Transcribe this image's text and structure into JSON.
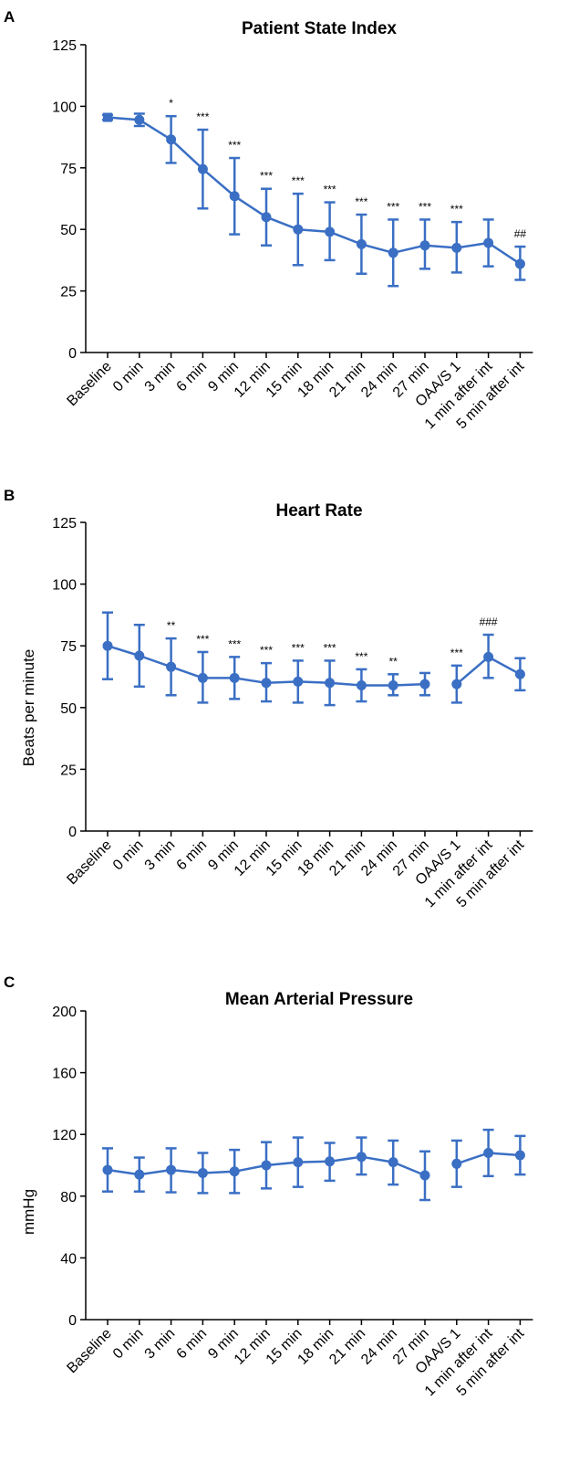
{
  "colors": {
    "series": "#3a6fc4",
    "axis": "#000000"
  },
  "chart_data": [
    {
      "panel": "A",
      "type": "line",
      "title": "Patient State Index",
      "ylabel": "",
      "ylim": [
        0,
        125
      ],
      "yticks": [
        0,
        25,
        50,
        75,
        100,
        125
      ],
      "categories": [
        "Baseline",
        "0 min",
        "3 min",
        "6 min",
        "9 min",
        "12 min",
        "15 min",
        "18 min",
        "21 min",
        "24 min",
        "27 min",
        "OAA/S 1",
        "1 min after int",
        "5 min after int"
      ],
      "values": [
        95.5,
        94.5,
        86.5,
        74.5,
        63.5,
        55,
        50,
        49,
        44,
        40.5,
        43.5,
        42.5,
        44.5,
        36
      ],
      "err_low": [
        94.5,
        92,
        77,
        58.5,
        48,
        43.5,
        35.5,
        37.5,
        32,
        27,
        34,
        32.5,
        35,
        29.5
      ],
      "err_high": [
        96.5,
        97,
        96,
        90.5,
        79,
        66.5,
        64.5,
        61,
        56,
        54,
        54,
        53,
        54,
        43
      ],
      "markers": [
        "square",
        "circle",
        "circle",
        "circle",
        "circle",
        "circle",
        "circle",
        "circle",
        "circle",
        "circle",
        "circle",
        "circle",
        "circle",
        "circle"
      ],
      "line_break_before": [],
      "significance": [
        "",
        "",
        "*",
        "***",
        "***",
        "***",
        "***",
        "***",
        "***",
        "***",
        "***",
        "***",
        "",
        "##"
      ]
    },
    {
      "panel": "B",
      "type": "line",
      "title": "Heart Rate",
      "ylabel": "Beats per minute",
      "ylim": [
        0,
        125
      ],
      "yticks": [
        0,
        25,
        50,
        75,
        100,
        125
      ],
      "categories": [
        "Baseline",
        "0 min",
        "3 min",
        "6 min",
        "9 min",
        "12 min",
        "15 min",
        "18 min",
        "21 min",
        "24 min",
        "27 min",
        "OAA/S 1",
        "1 min after int",
        "5 min after int"
      ],
      "values": [
        75,
        71,
        66.5,
        62,
        62,
        60,
        60.5,
        60,
        59,
        59,
        59.5,
        59.5,
        70.5,
        63.5
      ],
      "err_low": [
        61.5,
        58.5,
        55,
        52,
        53.5,
        52.5,
        52,
        51,
        52.5,
        55,
        55,
        52,
        62,
        57
      ],
      "err_high": [
        88.5,
        83.5,
        78,
        72.5,
        70.5,
        68,
        69,
        69,
        65.5,
        63.5,
        64,
        67,
        79.5,
        70
      ],
      "markers": [
        "circle",
        "circle",
        "circle",
        "circle",
        "circle",
        "circle",
        "circle",
        "circle",
        "circle",
        "circle",
        "circle",
        "circle",
        "circle",
        "circle"
      ],
      "line_break_before": [
        11
      ],
      "significance": [
        "",
        "",
        "**",
        "***",
        "***",
        "***",
        "***",
        "***",
        "***",
        "**",
        "",
        "***",
        "###",
        ""
      ]
    },
    {
      "panel": "C",
      "type": "line",
      "title": "Mean Arterial Pressure",
      "ylabel": "mmHg",
      "ylim": [
        0,
        200
      ],
      "yticks": [
        0,
        40,
        80,
        120,
        160,
        200
      ],
      "categories": [
        "Baseline",
        "0 min",
        "3 min",
        "6 min",
        "9 min",
        "12 min",
        "15 min",
        "18 min",
        "21 min",
        "24 min",
        "27 min",
        "OAA/S 1",
        "1 min after int",
        "5 min after int"
      ],
      "values": [
        97,
        94,
        97,
        95,
        96,
        100,
        102,
        102.5,
        105.5,
        102,
        93.5,
        101,
        108,
        106.5
      ],
      "err_low": [
        83,
        83,
        82.5,
        82,
        82,
        85,
        86,
        90,
        94,
        87.5,
        77.5,
        86,
        93,
        94
      ],
      "err_high": [
        111,
        105,
        111,
        108,
        110,
        115,
        118,
        114.5,
        118,
        116,
        109,
        116,
        123,
        119
      ],
      "markers": [
        "circle",
        "circle",
        "circle",
        "circle",
        "circle",
        "circle",
        "circle",
        "circle",
        "circle",
        "circle",
        "circle",
        "circle",
        "circle",
        "circle"
      ],
      "line_break_before": [
        11
      ],
      "significance": [
        "",
        "",
        "",
        "",
        "",
        "",
        "",
        "",
        "",
        "",
        "",
        "",
        "",
        ""
      ]
    }
  ]
}
